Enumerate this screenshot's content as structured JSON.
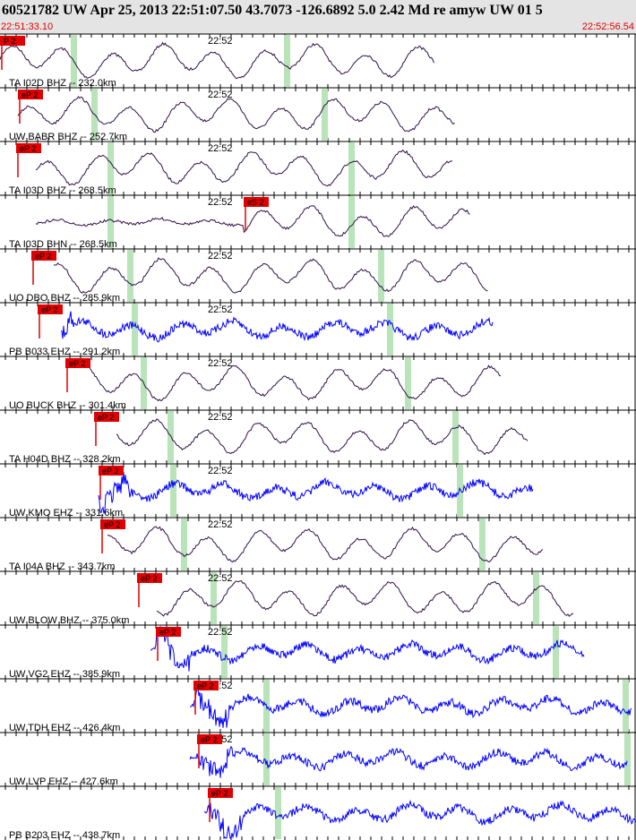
{
  "header": {
    "title": "60521782 UW Apr 25, 2013 22:51:07.50    43.7073 -126.6892  5.0 2.42 Md re amyw UW 01   5",
    "start_time": "22:51:33.10",
    "end_time": "22:52:56.54"
  },
  "traces": [
    {
      "label": "TA I02D BHZ -- 232.0km",
      "pick": "P 2",
      "time_mark": "22:52"
    },
    {
      "label": "UW BABR BHZ -- 252.7km",
      "pick": "eP 2",
      "time_mark": "22:52"
    },
    {
      "label": "TA I03D BHZ -- 268.5km",
      "pick": "eP 2",
      "time_mark": "22:52"
    },
    {
      "label": "TA I03D BHN -- 268.5km",
      "pick": "eS 2",
      "time_mark": "22:52"
    },
    {
      "label": "UO DBO BHZ -- 285.9km",
      "pick": "eP 2",
      "time_mark": "22:52"
    },
    {
      "label": "PB B033 EHZ -- 291.2km",
      "pick": "eP 2",
      "time_mark": "22:52"
    },
    {
      "label": "UO BUCK BHZ -- 301.4km",
      "pick": "eP 2",
      "time_mark": "22:52"
    },
    {
      "label": "TA H04D BHZ -- 328.2km",
      "pick": "eP 2",
      "time_mark": "22:52"
    },
    {
      "label": "UW KMO EHZ -- 331.6km",
      "pick": "eP 2",
      "time_mark": "22:52"
    },
    {
      "label": "TA I04A BHZ -- 343.7km",
      "pick": "eP 2",
      "time_mark": "22:52"
    },
    {
      "label": "UW BLOW BHZ -- 375.0km",
      "pick": "eP 2",
      "time_mark": "22:52"
    },
    {
      "label": "UW VG2 EHZ -- 385.9km",
      "pick": "eP 2",
      "time_mark": "22:52"
    },
    {
      "label": "UW TDH EHZ -- 426.4km",
      "pick": "eP 2",
      "time_mark": "22:52"
    },
    {
      "label": "UW LVP EHZ -- 427.6km",
      "pick": "eP 2",
      "time_mark": "22:52"
    },
    {
      "label": "PB B203 EHZ -- 438.7km",
      "pick": "eP 2",
      "time_mark": "22:52"
    }
  ]
}
